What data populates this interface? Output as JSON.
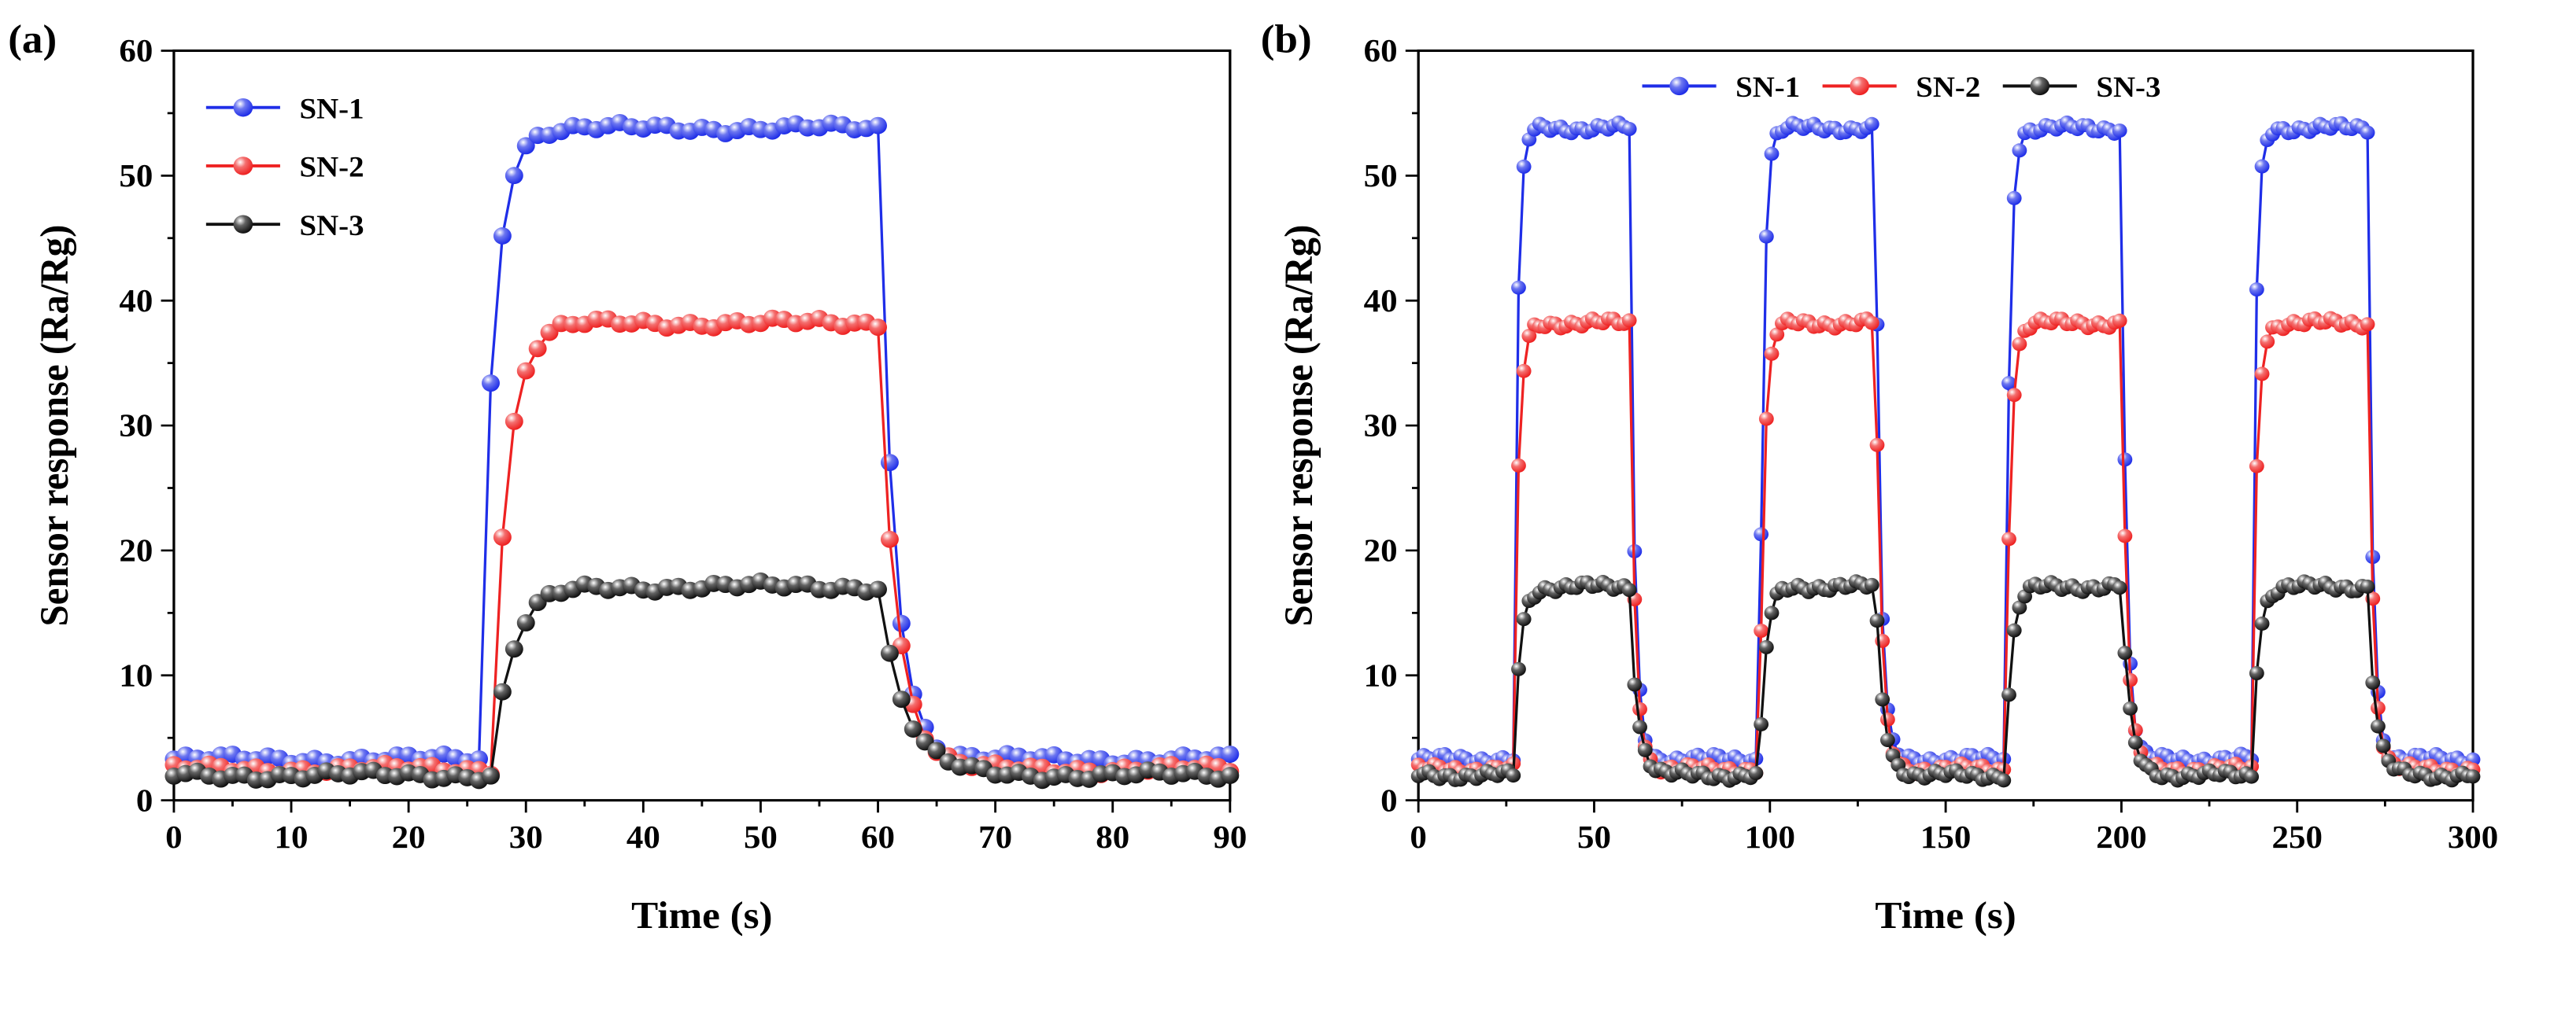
{
  "chart_data": [
    {
      "panel": "(a)",
      "type": "line",
      "xlabel": "Time (s)",
      "ylabel": "Sensor response (Ra/Rg)",
      "xlim": [
        0,
        90
      ],
      "ylim": [
        0,
        60
      ],
      "xticks": [
        0,
        10,
        20,
        30,
        40,
        50,
        60,
        70,
        80,
        90
      ],
      "yticks": [
        0,
        10,
        20,
        30,
        40,
        50,
        60
      ],
      "legend_position": "top-left",
      "legend_layout": "vertical",
      "x_step": 1,
      "series": [
        {
          "name": "SN-1",
          "color": "#1f2ee8",
          "baseline": 3.3,
          "plateau": 53.8,
          "rise_start": 26,
          "rise_end": 31,
          "decay_start": 60,
          "decay_end": 66
        },
        {
          "name": "SN-2",
          "color": "#ee2222",
          "baseline": 2.5,
          "plateau": 38.2,
          "rise_start": 27,
          "rise_end": 33,
          "decay_start": 60,
          "decay_end": 67
        },
        {
          "name": "SN-3",
          "color": "#111111",
          "baseline": 2.0,
          "plateau": 17.1,
          "rise_start": 27,
          "rise_end": 35,
          "decay_start": 60,
          "decay_end": 70
        }
      ]
    },
    {
      "panel": "(b)",
      "type": "line",
      "xlabel": "Time (s)",
      "ylabel": "Sensor response (Ra/Rg)",
      "xlim": [
        0,
        300
      ],
      "ylim": [
        0,
        60
      ],
      "xticks": [
        0,
        50,
        100,
        150,
        200,
        250,
        300
      ],
      "yticks": [
        0,
        10,
        20,
        30,
        40,
        50,
        60
      ],
      "legend_position": "top-center",
      "legend_layout": "horizontal",
      "x_step": 1.5,
      "cycles": [
        {
          "on": 27,
          "off": 60
        },
        {
          "on": 97,
          "off": 130
        },
        {
          "on": 167,
          "off": 200
        },
        {
          "on": 237,
          "off": 270
        }
      ],
      "series": [
        {
          "name": "SN-1",
          "color": "#1f2ee8",
          "baseline": 3.3,
          "plateau": 53.8,
          "rise": 5,
          "decay": 6
        },
        {
          "name": "SN-2",
          "color": "#ee2222",
          "baseline": 2.5,
          "plateau": 38.2,
          "rise": 6,
          "decay": 7
        },
        {
          "name": "SN-3",
          "color": "#111111",
          "baseline": 2.0,
          "plateau": 17.1,
          "rise": 8,
          "decay": 10
        }
      ]
    }
  ]
}
